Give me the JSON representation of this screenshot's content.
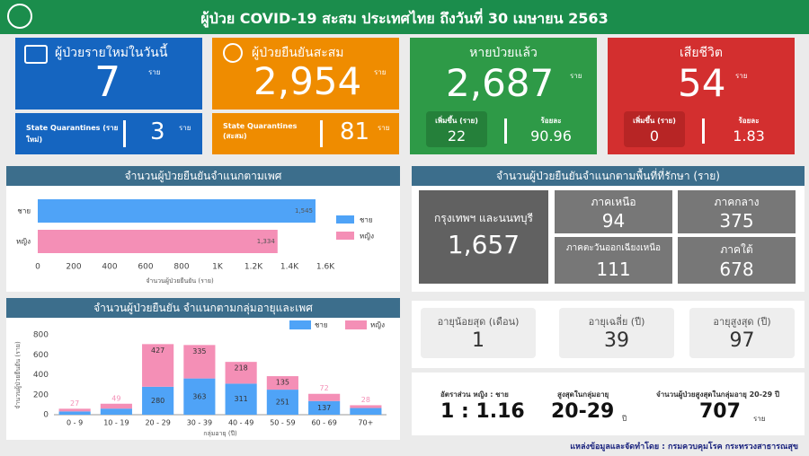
{
  "header": {
    "title": "ผู้ป่วย COVID-19 สะสม  ประเทศไทย ถึงวันที่ 30 เมษายน 2563"
  },
  "cards": [
    {
      "title": "ผู้ป่วยรายใหม่ในวันนี้",
      "value": "7",
      "unit": "ราย",
      "sub_label": "State Quarantines (รายใหม่)",
      "sub_value": "3",
      "sub_unit": "ราย"
    },
    {
      "title": "ผู้ป่วยยืนยันสะสม",
      "value": "2,954",
      "unit": "ราย",
      "sub_label": "State Quarantines (สะสม)",
      "sub_value": "81",
      "sub_unit": "ราย"
    },
    {
      "title": "หายป่วยแล้ว",
      "value": "2,687",
      "unit": "ราย",
      "increase_label": "เพิ่มขึ้น (ราย)",
      "increase": "22",
      "percent_label": "ร้อยละ",
      "percent": "90.96"
    },
    {
      "title": "เสียชีวิต",
      "value": "54",
      "unit": "ราย",
      "increase_label": "เพิ่มขึ้น (ราย)",
      "increase": "0",
      "percent_label": "ร้อยละ",
      "percent": "1.83"
    }
  ],
  "chart_data": [
    {
      "type": "hbar",
      "title": "จำนวนผู้ป่วยยืนยันจำแนกตามเพศ",
      "categories": [
        "ชาย",
        "หญิง"
      ],
      "values": [
        1545,
        1334
      ],
      "value_labels": [
        "1,545",
        "1,334"
      ],
      "colors": [
        "#4fa3f7",
        "#f48fb6"
      ],
      "xlabel": "จำนวนผู้ป่วยยืนยัน (ราย)",
      "xlim": [
        0,
        1600
      ],
      "xticks": [
        0,
        200,
        400,
        600,
        800,
        {
          "value": 1000,
          "label": "1K"
        },
        {
          "value": 1200,
          "label": "1.2K"
        },
        {
          "value": 1400,
          "label": "1.4K"
        },
        {
          "value": 1600,
          "label": "1.6K"
        }
      ],
      "grid": false
    },
    {
      "type": "stacked_bar",
      "title": "จำนวนผู้ป่วยยืนยัน จำแนกตามกลุ่มอายุและเพศ",
      "categories": [
        "0 - 9",
        "10 - 19",
        "20 - 29",
        "30 - 39",
        "40 - 49",
        "50 - 59",
        "60 - 69",
        "70+"
      ],
      "series": [
        {
          "name": "ชาย",
          "color": "#4fa3f7",
          "values": [
            33,
            61,
            280,
            363,
            311,
            251,
            137,
            67
          ],
          "value_labels": [
            null,
            null,
            "280",
            "363",
            "311",
            "251",
            "137",
            null
          ]
        },
        {
          "name": "หญิง",
          "color": "#f48fb6",
          "values": [
            27,
            49,
            427,
            335,
            218,
            135,
            72,
            28
          ],
          "value_labels": [
            "27",
            "49",
            "427",
            "335",
            "218",
            "135",
            "72",
            "28"
          ]
        }
      ],
      "xlabel": "กลุ่มอายุ (ปี)",
      "ylabel": "จำนวนผู้ป่วยยืนยัน (ราย)",
      "ylim": [
        0,
        800
      ],
      "yticks": [
        0,
        200,
        400,
        600,
        800
      ],
      "grid": false
    }
  ],
  "regions": {
    "title": "จำนวนผู้ป่วยยืนยันจำแนกตามพื้นที่ที่รักษา (ราย)",
    "items": [
      {
        "label": "กรุงเทพฯ และนนทบุรี",
        "value": "1,657"
      },
      {
        "label": "ภาคเหนือ",
        "value": "94"
      },
      {
        "label": "ภาคกลาง",
        "value": "375"
      },
      {
        "label": "ภาคตะวันออกเฉียงเหนือ",
        "value": "111"
      },
      {
        "label": "ภาคใต้",
        "value": "678"
      }
    ]
  },
  "age_stats": [
    {
      "label": "อายุน้อยสุด (เดือน)",
      "value": "1"
    },
    {
      "label": "อายุเฉลี่ย (ปี)",
      "value": "39"
    },
    {
      "label": "อายุสูงสุด (ปี)",
      "value": "97"
    }
  ],
  "summary": {
    "ratio_label": "อัตราส่วน  หญิง : ชาย",
    "ratio": "1 : 1.16",
    "top_group_label": "สูงสุดในกลุ่มอายุ",
    "top_group": "20-29",
    "top_group_unit": "ปี",
    "top_count_label": "จำนวนผู้ป่วยสูงสุดในกลุ่มอายุ 20-29 ปี",
    "top_count": "707",
    "top_count_unit": "ราย"
  },
  "footer": "แหล่งข้อมูลและจัดทำโดย : กรมควบคุมโรค กระทรวงสาธารณสุข"
}
